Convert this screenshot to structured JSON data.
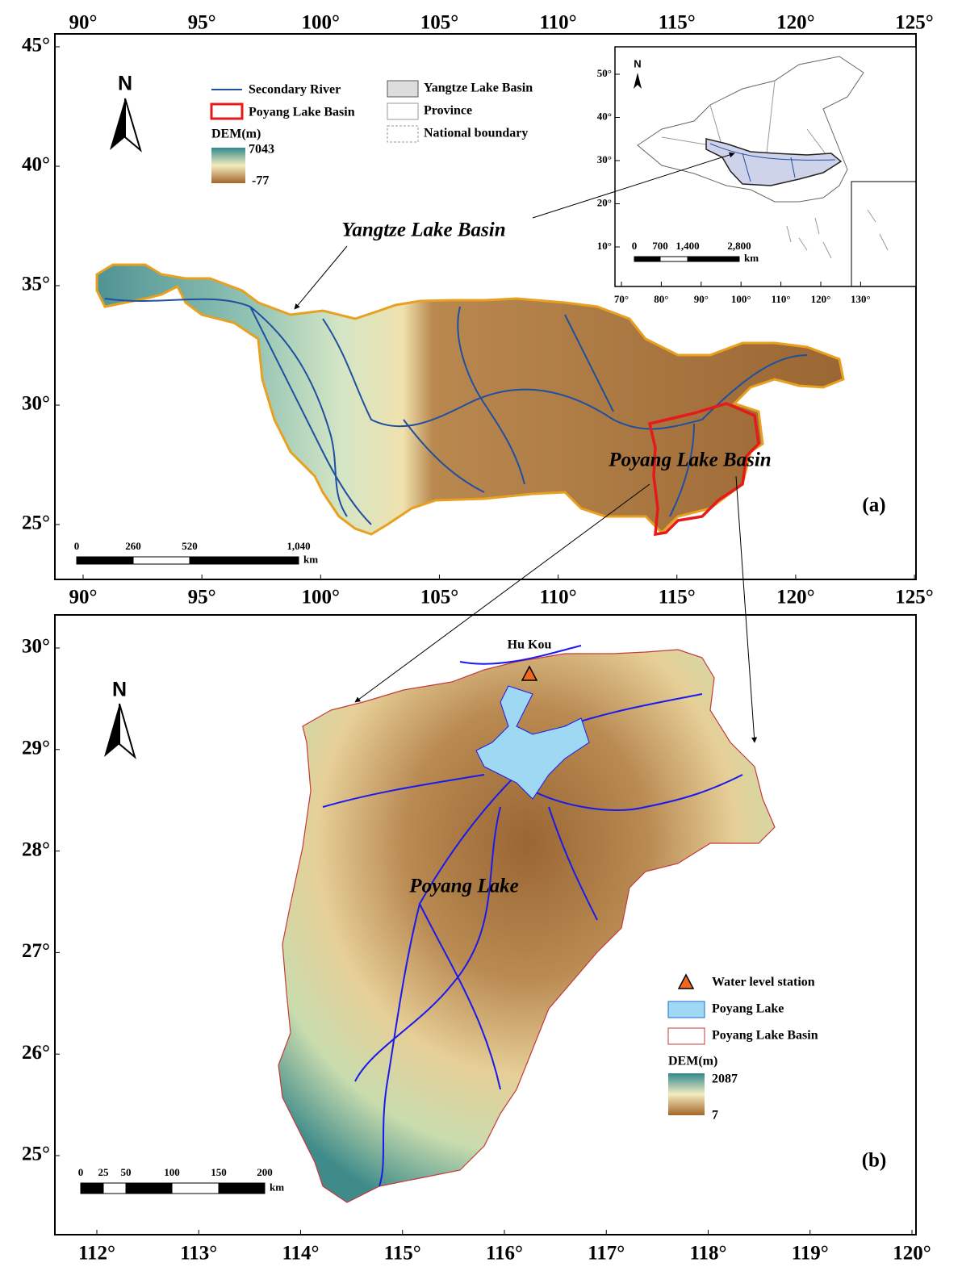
{
  "panel_a": {
    "label": "(a)",
    "north": "N",
    "xticks": [
      {
        "value": 90,
        "label": "90°"
      },
      {
        "value": 95,
        "label": "95°"
      },
      {
        "value": 100,
        "label": "100°"
      },
      {
        "value": 105,
        "label": "105°"
      },
      {
        "value": 110,
        "label": "110°"
      },
      {
        "value": 115,
        "label": "115°"
      },
      {
        "value": 120,
        "label": "120°"
      },
      {
        "value": 125,
        "label": "125°"
      }
    ],
    "yticks": [
      {
        "value": 45,
        "label": "45°"
      },
      {
        "value": 40,
        "label": "40°"
      },
      {
        "value": 35,
        "label": "35°"
      },
      {
        "value": 30,
        "label": "30°"
      },
      {
        "value": 25,
        "label": "25°"
      }
    ],
    "legend": {
      "secondary_river": "Secondary River",
      "poyang_lake_basin": "Poyang Lake Basin",
      "yangtze_lake_basin": "Yangtze Lake Basin",
      "province": "Province",
      "national_boundary": "National boundary",
      "dem_title": "DEM(m)",
      "dem_max": "7043",
      "dem_min": "-77"
    },
    "basin_label": "Yangtze Lake Basin",
    "poyang_label": "Poyang Lake Basin",
    "scale": {
      "labels": [
        "0",
        "260",
        "520",
        "1,040"
      ],
      "unit": "km"
    },
    "inset": {
      "north": "N",
      "xticks": [
        {
          "value": 70,
          "label": "70°"
        },
        {
          "value": 80,
          "label": "80°"
        },
        {
          "value": 90,
          "label": "90°"
        },
        {
          "value": 100,
          "label": "100°"
        },
        {
          "value": 110,
          "label": "110°"
        },
        {
          "value": 120,
          "label": "120°"
        },
        {
          "value": 130,
          "label": "130°"
        }
      ],
      "yticks": [
        {
          "value": 50,
          "label": "50°"
        },
        {
          "value": 40,
          "label": "40°"
        },
        {
          "value": 30,
          "label": "30°"
        },
        {
          "value": 20,
          "label": "20°"
        },
        {
          "value": 10,
          "label": "10°"
        }
      ],
      "scale": {
        "labels": [
          "0",
          "700",
          "1,400",
          "2,800"
        ],
        "unit": "km"
      }
    }
  },
  "panel_b": {
    "label": "(b)",
    "north": "N",
    "station": "Hu Kou",
    "lake_label": "Poyang Lake",
    "xticks": [
      {
        "value": 112,
        "label": "112°"
      },
      {
        "value": 113,
        "label": "113°"
      },
      {
        "value": 114,
        "label": "114°"
      },
      {
        "value": 115,
        "label": "115°"
      },
      {
        "value": 116,
        "label": "116°"
      },
      {
        "value": 117,
        "label": "117°"
      },
      {
        "value": 118,
        "label": "118°"
      },
      {
        "value": 119,
        "label": "119°"
      },
      {
        "value": 120,
        "label": "120°"
      }
    ],
    "yticks": [
      {
        "value": 30,
        "label": "30°"
      },
      {
        "value": 29,
        "label": "29°"
      },
      {
        "value": 28,
        "label": "28°"
      },
      {
        "value": 27,
        "label": "27°"
      },
      {
        "value": 26,
        "label": "26°"
      },
      {
        "value": 25,
        "label": "25°"
      }
    ],
    "legend": {
      "station": "Water level station",
      "lake": "Poyang Lake",
      "basin": "Poyang Lake Basin",
      "dem_title": "DEM(m)",
      "dem_max": "2087",
      "dem_min": "7"
    },
    "scale": {
      "labels": [
        "0",
        "25",
        "50",
        "100",
        "150",
        "200"
      ],
      "unit": "km"
    }
  }
}
